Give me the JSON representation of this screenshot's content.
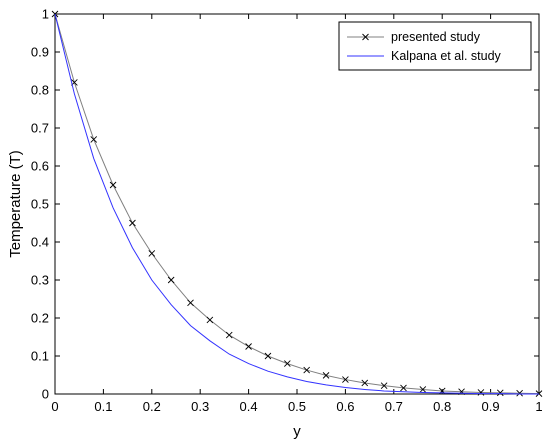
{
  "chart_data": {
    "type": "line",
    "xlabel": "y",
    "ylabel": "Temperature (T)",
    "xlim": [
      0,
      1
    ],
    "ylim": [
      0,
      1
    ],
    "xticks": [
      "0",
      "0.1",
      "0.2",
      "0.3",
      "0.4",
      "0.5",
      "0.6",
      "0.7",
      "0.8",
      "0.9",
      "1"
    ],
    "yticks": [
      "0",
      "0.1",
      "0.2",
      "0.3",
      "0.4",
      "0.5",
      "0.6",
      "0.7",
      "0.8",
      "0.9",
      "1"
    ],
    "grid": false,
    "legend_position": "top-right",
    "series": [
      {
        "name": "presented study",
        "color": "#000000",
        "line_color": "#808080",
        "marker": "x",
        "x": [
          0,
          0.04,
          0.08,
          0.12,
          0.16,
          0.2,
          0.24,
          0.28,
          0.32,
          0.36,
          0.4,
          0.44,
          0.48,
          0.52,
          0.56,
          0.6,
          0.64,
          0.68,
          0.72,
          0.76,
          0.8,
          0.84,
          0.88,
          0.92,
          0.96,
          1.0
        ],
        "y": [
          1.0,
          0.82,
          0.67,
          0.55,
          0.45,
          0.37,
          0.3,
          0.24,
          0.195,
          0.155,
          0.125,
          0.1,
          0.08,
          0.063,
          0.049,
          0.038,
          0.029,
          0.022,
          0.016,
          0.012,
          0.008,
          0.006,
          0.004,
          0.003,
          0.002,
          0.001
        ]
      },
      {
        "name": "Kalpana et al. study",
        "color": "#3333ff",
        "marker": "none",
        "x": [
          0,
          0.04,
          0.08,
          0.12,
          0.16,
          0.2,
          0.24,
          0.28,
          0.32,
          0.36,
          0.4,
          0.44,
          0.48,
          0.52,
          0.56,
          0.6,
          0.64,
          0.68,
          0.72,
          0.76,
          0.8,
          0.84,
          0.88,
          0.92,
          0.96,
          1.0
        ],
        "y": [
          1.0,
          0.79,
          0.62,
          0.49,
          0.385,
          0.3,
          0.235,
          0.18,
          0.14,
          0.105,
          0.08,
          0.06,
          0.045,
          0.033,
          0.024,
          0.017,
          0.012,
          0.008,
          0.006,
          0.004,
          0.003,
          0.002,
          0.001,
          0.001,
          0.0,
          0.0
        ]
      }
    ]
  }
}
